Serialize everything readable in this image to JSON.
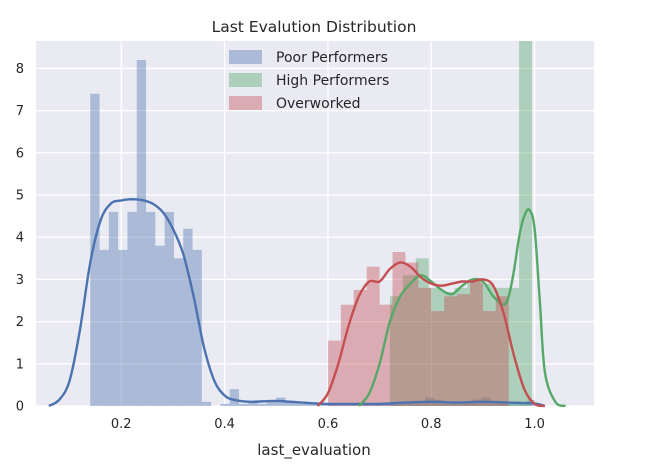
{
  "chart_data": {
    "type": "histogram",
    "title": "Last Evalution Distribution",
    "xlabel": "last_evaluation",
    "ylabel": "",
    "xlim": [
      0.035,
      1.115
    ],
    "ylim": [
      0,
      8.65
    ],
    "xticks": [
      "0.2",
      "0.4",
      "0.6",
      "0.8",
      "1.0"
    ],
    "xtick_values": [
      0.2,
      0.4,
      0.6,
      0.8,
      1.0
    ],
    "yticks": [
      "0",
      "1",
      "2",
      "3",
      "4",
      "5",
      "6",
      "7",
      "8"
    ],
    "ytick_values": [
      0,
      1,
      2,
      3,
      4,
      5,
      6,
      7,
      8
    ],
    "grid": true,
    "legend_position": "top-center",
    "series": [
      {
        "name": "Poor Performers",
        "color": "#4c72b0",
        "bars": {
          "edges": [
            0.14,
            0.158,
            0.176,
            0.194,
            0.212,
            0.23,
            0.248,
            0.266,
            0.284,
            0.302,
            0.32,
            0.338,
            0.356,
            0.374,
            0.392,
            0.41,
            0.428,
            0.446,
            0.464,
            0.482,
            0.5,
            0.518,
            0.536,
            0.554,
            0.572,
            0.59,
            0.608,
            0.626,
            0.644,
            0.662,
            0.68,
            0.698,
            0.716,
            0.734,
            0.752,
            0.77,
            0.788,
            0.806,
            0.824,
            0.842,
            0.86,
            0.878,
            0.896,
            0.914,
            0.932,
            0.95,
            0.968,
            0.986,
            1.0
          ],
          "heights": [
            7.4,
            3.7,
            4.6,
            3.7,
            4.6,
            8.2,
            4.6,
            3.8,
            4.6,
            3.5,
            4.2,
            3.7,
            0.1,
            0.0,
            0.05,
            0.4,
            0.05,
            0.1,
            0.05,
            0.1,
            0.2,
            0.1,
            0.05,
            0.05,
            0.05,
            0.05,
            0.05,
            0.05,
            0.05,
            0.05,
            0.05,
            0.05,
            0.05,
            0.1,
            0.1,
            0.1,
            0.2,
            0.15,
            0.1,
            0.1,
            0.1,
            0.15,
            0.2,
            0.1,
            0.1,
            0.1,
            0.1,
            0.15
          ]
        },
        "kde": {
          "x": [
            0.06,
            0.08,
            0.1,
            0.12,
            0.14,
            0.16,
            0.18,
            0.2,
            0.22,
            0.24,
            0.26,
            0.28,
            0.3,
            0.32,
            0.34,
            0.36,
            0.38,
            0.4,
            0.42,
            0.45,
            0.5,
            0.55,
            0.6,
            0.65,
            0.7,
            0.75,
            0.8,
            0.85,
            0.9,
            0.95,
            1.0,
            1.02
          ],
          "y": [
            0.0,
            0.15,
            0.6,
            1.8,
            3.4,
            4.4,
            4.8,
            4.87,
            4.9,
            4.88,
            4.8,
            4.6,
            4.2,
            3.6,
            2.6,
            1.4,
            0.6,
            0.25,
            0.14,
            0.1,
            0.12,
            0.08,
            0.05,
            0.05,
            0.05,
            0.08,
            0.1,
            0.08,
            0.1,
            0.08,
            0.06,
            0.0
          ]
        }
      },
      {
        "name": "High Performers",
        "color": "#55a868",
        "bars": {
          "edges": [
            0.72,
            0.745,
            0.77,
            0.795,
            0.82,
            0.845,
            0.87,
            0.895,
            0.92,
            0.945,
            0.97,
            0.995
          ],
          "heights": [
            2.6,
            3.1,
            3.5,
            2.8,
            2.7,
            2.8,
            3.0,
            2.9,
            2.8,
            2.8,
            8.7
          ]
        },
        "kde": {
          "x": [
            0.66,
            0.68,
            0.7,
            0.72,
            0.74,
            0.76,
            0.78,
            0.8,
            0.82,
            0.84,
            0.86,
            0.88,
            0.9,
            0.92,
            0.94,
            0.95,
            0.96,
            0.97,
            0.98,
            0.99,
            1.0,
            1.01,
            1.02,
            1.04,
            1.06
          ],
          "y": [
            0.0,
            0.3,
            1.0,
            2.0,
            2.6,
            2.9,
            3.1,
            2.95,
            2.75,
            2.65,
            2.85,
            3.0,
            2.95,
            2.6,
            2.4,
            2.6,
            3.2,
            4.0,
            4.5,
            4.65,
            4.2,
            2.5,
            0.8,
            0.1,
            0.0
          ]
        }
      },
      {
        "name": "Overworked",
        "color": "#c44e52",
        "bars": {
          "edges": [
            0.6,
            0.625,
            0.65,
            0.675,
            0.7,
            0.725,
            0.75,
            0.775,
            0.8,
            0.825,
            0.85,
            0.875,
            0.9,
            0.925,
            0.95
          ],
          "heights": [
            1.55,
            2.4,
            2.75,
            3.3,
            2.4,
            3.65,
            3.4,
            2.8,
            2.25,
            2.6,
            2.65,
            3.0,
            2.25,
            2.6
          ]
        },
        "kde": {
          "x": [
            0.58,
            0.6,
            0.62,
            0.64,
            0.66,
            0.68,
            0.7,
            0.72,
            0.74,
            0.76,
            0.78,
            0.8,
            0.82,
            0.84,
            0.86,
            0.88,
            0.9,
            0.92,
            0.94,
            0.96,
            0.98,
            1.0,
            1.02
          ],
          "y": [
            0.0,
            0.3,
            1.0,
            1.9,
            2.6,
            2.95,
            2.95,
            3.25,
            3.4,
            3.3,
            3.05,
            2.9,
            2.85,
            2.9,
            2.95,
            2.95,
            3.0,
            2.85,
            2.2,
            1.2,
            0.4,
            0.05,
            0.0
          ]
        }
      }
    ]
  }
}
